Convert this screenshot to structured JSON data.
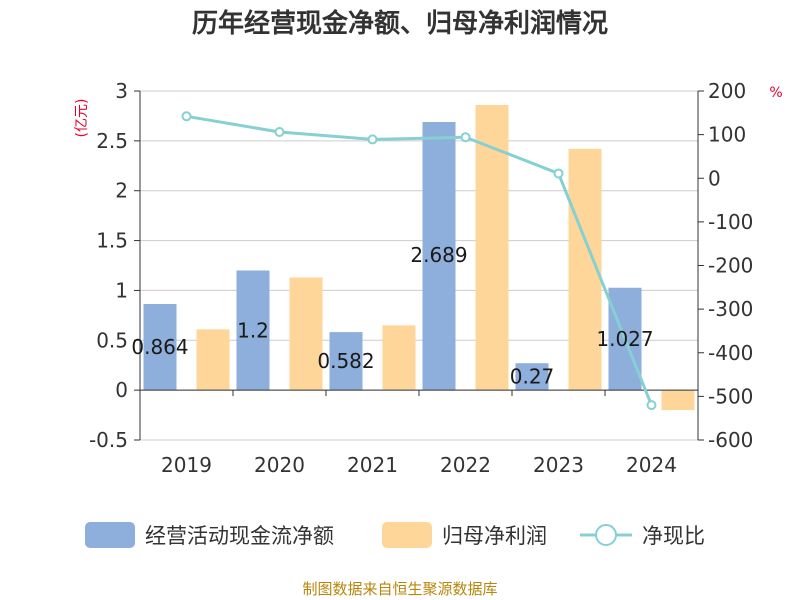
{
  "chart_data": {
    "type": "bar",
    "title": "历年经营现金净额、归母净利润情况",
    "categories": [
      "2019",
      "2020",
      "2021",
      "2022",
      "2023",
      "2024"
    ],
    "y_left": {
      "unit": "(亿元)",
      "ylim": [
        -0.5,
        3
      ],
      "ticks": [
        "3",
        "2.5",
        "2",
        "1.5",
        "1",
        "0.5",
        "0",
        "-0.5"
      ],
      "tick_values": [
        3,
        2.5,
        2,
        1.5,
        1,
        0.5,
        0,
        -0.5
      ]
    },
    "y_right": {
      "unit": "%",
      "ylim": [
        -600,
        200
      ],
      "ticks": [
        "200",
        "100",
        "0",
        "-100",
        "-200",
        "-300",
        "-400",
        "-500",
        "-600"
      ],
      "tick_values": [
        200,
        100,
        0,
        -100,
        -200,
        -300,
        -400,
        -500,
        -600
      ]
    },
    "series": [
      {
        "name": "经营活动现金流净额",
        "kind": "bar",
        "axis": "left",
        "color": "#8eaedb",
        "values": [
          0.864,
          1.2,
          0.582,
          2.689,
          0.27,
          1.027
        ],
        "labels": [
          "0.864",
          "1.2",
          "0.582",
          "2.689",
          "0.27",
          "1.027"
        ]
      },
      {
        "name": "归母净利润",
        "kind": "bar",
        "axis": "left",
        "color": "#ffd699",
        "values": [
          0.61,
          1.13,
          0.65,
          2.86,
          2.42,
          -0.2
        ]
      },
      {
        "name": "净现比",
        "kind": "line",
        "axis": "right",
        "color": "#86d0d3",
        "values": [
          142,
          106,
          89,
          94,
          11,
          -520
        ]
      }
    ],
    "grid": true,
    "legend": "bottom"
  },
  "footer": {
    "source": "制图数据来自恒生聚源数据库"
  }
}
